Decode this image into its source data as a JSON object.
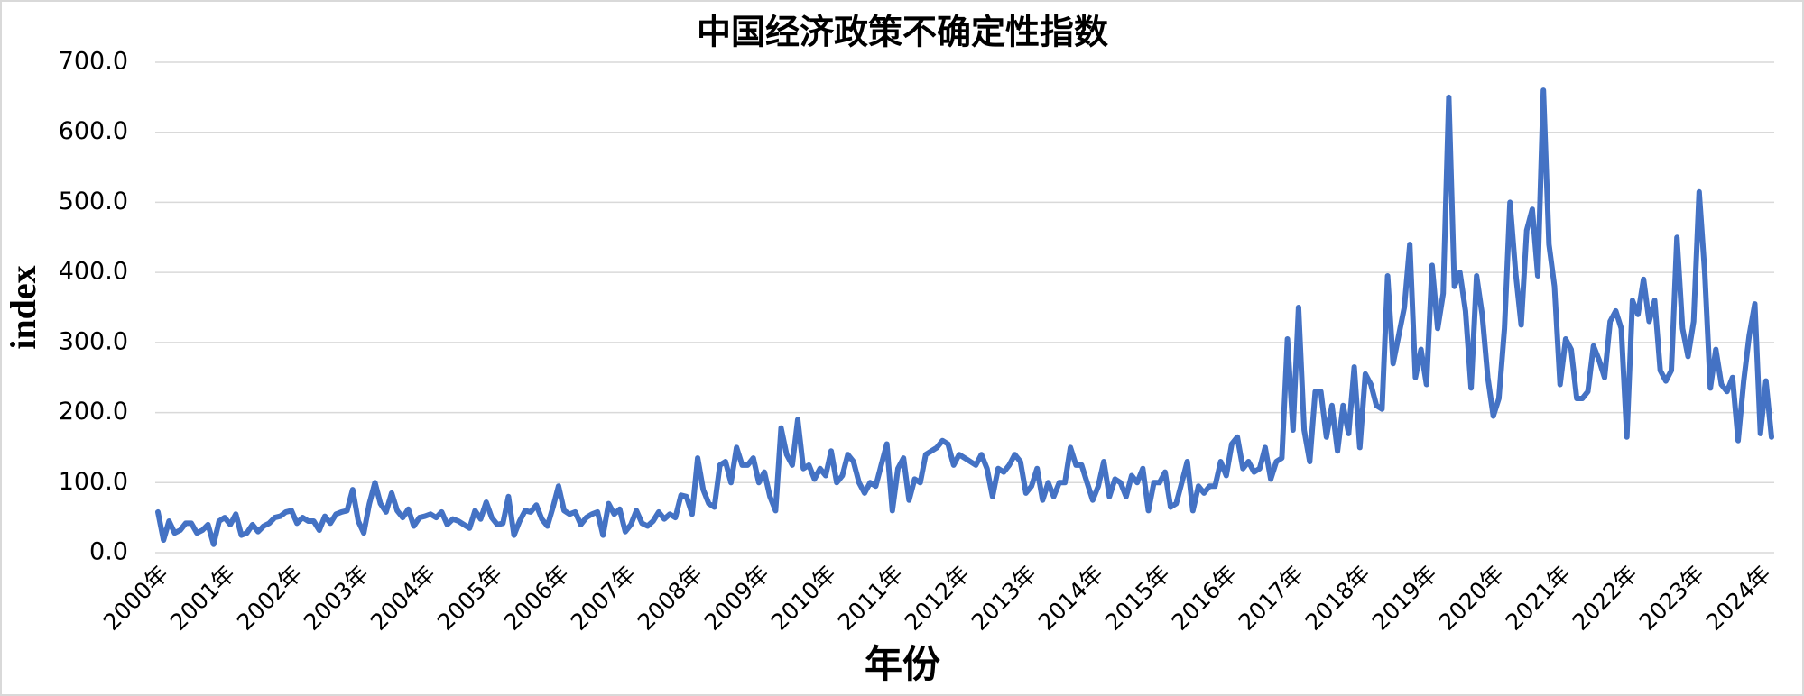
{
  "chart_data": {
    "type": "line",
    "title": "中国经济政策不确定性指数",
    "x_label": "年份",
    "y_label": "index",
    "color": "#4472c4",
    "grid": true,
    "ylim": [
      0,
      700
    ],
    "yticks": [
      {
        "value": 0,
        "label": "0.0"
      },
      {
        "value": 100,
        "label": "100.0"
      },
      {
        "value": 200,
        "label": "200.0"
      },
      {
        "value": 300,
        "label": "300.0"
      },
      {
        "value": 400,
        "label": "400.0"
      },
      {
        "value": 500,
        "label": "500.0"
      },
      {
        "value": 600,
        "label": "600.0"
      },
      {
        "value": 700,
        "label": "700.0"
      }
    ],
    "categories": [
      "2000年",
      null,
      null,
      null,
      null,
      null,
      null,
      null,
      null,
      null,
      null,
      null,
      "2001年",
      null,
      null,
      null,
      null,
      null,
      null,
      null,
      null,
      null,
      null,
      null,
      "2002年",
      null,
      null,
      null,
      null,
      null,
      null,
      null,
      null,
      null,
      null,
      null,
      "2003年",
      null,
      null,
      null,
      null,
      null,
      null,
      null,
      null,
      null,
      null,
      null,
      "2004年",
      null,
      null,
      null,
      null,
      null,
      null,
      null,
      null,
      null,
      null,
      null,
      "2005年",
      null,
      null,
      null,
      null,
      null,
      null,
      null,
      null,
      null,
      null,
      null,
      "2006年",
      null,
      null,
      null,
      null,
      null,
      null,
      null,
      null,
      null,
      null,
      null,
      "2007年",
      null,
      null,
      null,
      null,
      null,
      null,
      null,
      null,
      null,
      null,
      null,
      "2008年",
      null,
      null,
      null,
      null,
      null,
      null,
      null,
      null,
      null,
      null,
      null,
      "2009年",
      null,
      null,
      null,
      null,
      null,
      null,
      null,
      null,
      null,
      null,
      null,
      "2010年",
      null,
      null,
      null,
      null,
      null,
      null,
      null,
      null,
      null,
      null,
      null,
      "2011年",
      null,
      null,
      null,
      null,
      null,
      null,
      null,
      null,
      null,
      null,
      null,
      "2012年",
      null,
      null,
      null,
      null,
      null,
      null,
      null,
      null,
      null,
      null,
      null,
      "2013年",
      null,
      null,
      null,
      null,
      null,
      null,
      null,
      null,
      null,
      null,
      null,
      "2014年",
      null,
      null,
      null,
      null,
      null,
      null,
      null,
      null,
      null,
      null,
      null,
      "2015年",
      null,
      null,
      null,
      null,
      null,
      null,
      null,
      null,
      null,
      null,
      null,
      "2016年",
      null,
      null,
      null,
      null,
      null,
      null,
      null,
      null,
      null,
      null,
      null,
      "2017年",
      null,
      null,
      null,
      null,
      null,
      null,
      null,
      null,
      null,
      null,
      null,
      "2018年",
      null,
      null,
      null,
      null,
      null,
      null,
      null,
      null,
      null,
      null,
      null,
      "2019年",
      null,
      null,
      null,
      null,
      null,
      null,
      null,
      null,
      null,
      null,
      null,
      "2020年",
      null,
      null,
      null,
      null,
      null,
      null,
      null,
      null,
      null,
      null,
      null,
      "2021年",
      null,
      null,
      null,
      null,
      null,
      null,
      null,
      null,
      null,
      null,
      null,
      "2022年",
      null,
      null,
      null,
      null,
      null,
      null,
      null,
      null,
      null,
      null,
      null,
      "2023年",
      null,
      null,
      null,
      null,
      null,
      null,
      null,
      null,
      null,
      null,
      null,
      "2024年",
      null,
      null
    ],
    "values": [
      58,
      18,
      45,
      28,
      32,
      42,
      42,
      28,
      32,
      40,
      12,
      45,
      50,
      40,
      55,
      25,
      28,
      40,
      30,
      38,
      42,
      50,
      52,
      58,
      60,
      42,
      50,
      45,
      45,
      32,
      52,
      42,
      55,
      58,
      60,
      90,
      45,
      28,
      70,
      100,
      70,
      58,
      85,
      60,
      50,
      62,
      38,
      50,
      52,
      55,
      50,
      58,
      40,
      48,
      45,
      40,
      35,
      60,
      48,
      72,
      50,
      40,
      42,
      80,
      25,
      45,
      60,
      58,
      68,
      48,
      38,
      65,
      95,
      60,
      55,
      58,
      40,
      50,
      55,
      58,
      25,
      70,
      55,
      62,
      30,
      40,
      60,
      42,
      38,
      45,
      58,
      48,
      55,
      50,
      82,
      80,
      55,
      135,
      90,
      70,
      65,
      125,
      130,
      100,
      150,
      125,
      125,
      135,
      100,
      115,
      80,
      60,
      178,
      140,
      125,
      190,
      120,
      125,
      105,
      120,
      110,
      145,
      100,
      110,
      140,
      130,
      100,
      85,
      100,
      95,
      125,
      155,
      60,
      120,
      135,
      75,
      105,
      100,
      140,
      145,
      150,
      160,
      155,
      125,
      140,
      135,
      130,
      125,
      140,
      120,
      80,
      120,
      115,
      125,
      140,
      130,
      85,
      95,
      120,
      75,
      100,
      80,
      100,
      100,
      150,
      125,
      125,
      100,
      75,
      95,
      130,
      80,
      105,
      100,
      80,
      110,
      100,
      120,
      60,
      100,
      100,
      115,
      65,
      70,
      100,
      130,
      60,
      95,
      85,
      95,
      95,
      130,
      110,
      155,
      165,
      120,
      130,
      115,
      120,
      150,
      105,
      130,
      135,
      305,
      175,
      350,
      175,
      130,
      230,
      230,
      165,
      210,
      145,
      210,
      170,
      265,
      150,
      255,
      240,
      210,
      205,
      395,
      270,
      310,
      350,
      440,
      250,
      290,
      240,
      410,
      320,
      370,
      650,
      380,
      400,
      345,
      235,
      395,
      340,
      250,
      195,
      220,
      320,
      500,
      400,
      325,
      460,
      490,
      395,
      660,
      440,
      380,
      240,
      305,
      290,
      220,
      220,
      230,
      295,
      275,
      250,
      330,
      345,
      320,
      165,
      360,
      340,
      390,
      330,
      360,
      260,
      245,
      260,
      450,
      320,
      280,
      330,
      515,
      400,
      235,
      290,
      240,
      230,
      250,
      160,
      245,
      310,
      355,
      170,
      245,
      165
    ]
  }
}
